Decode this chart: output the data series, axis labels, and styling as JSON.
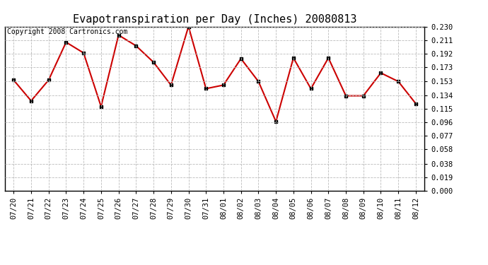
{
  "title": "Evapotranspiration per Day (Inches) 20080813",
  "copyright_text": "Copyright 2008 Cartronics.com",
  "x_labels": [
    "07/20",
    "07/21",
    "07/22",
    "07/23",
    "07/24",
    "07/25",
    "07/26",
    "07/27",
    "07/28",
    "07/29",
    "07/30",
    "07/31",
    "08/01",
    "08/02",
    "08/03",
    "08/04",
    "08/05",
    "08/06",
    "08/07",
    "08/08",
    "08/09",
    "08/10",
    "08/11",
    "08/12"
  ],
  "y_values": [
    0.155,
    0.126,
    0.155,
    0.208,
    0.193,
    0.118,
    0.218,
    0.203,
    0.18,
    0.148,
    0.23,
    0.143,
    0.148,
    0.185,
    0.153,
    0.097,
    0.186,
    0.143,
    0.186,
    0.133,
    0.133,
    0.165,
    0.153,
    0.122
  ],
  "y_ticks": [
    0.0,
    0.019,
    0.038,
    0.058,
    0.077,
    0.096,
    0.115,
    0.134,
    0.153,
    0.173,
    0.192,
    0.211,
    0.23
  ],
  "line_color": "#cc0000",
  "marker_color": "#000000",
  "background_color": "#ffffff",
  "grid_color": "#bbbbbb",
  "title_fontsize": 11,
  "copyright_fontsize": 7,
  "tick_fontsize": 7.5
}
